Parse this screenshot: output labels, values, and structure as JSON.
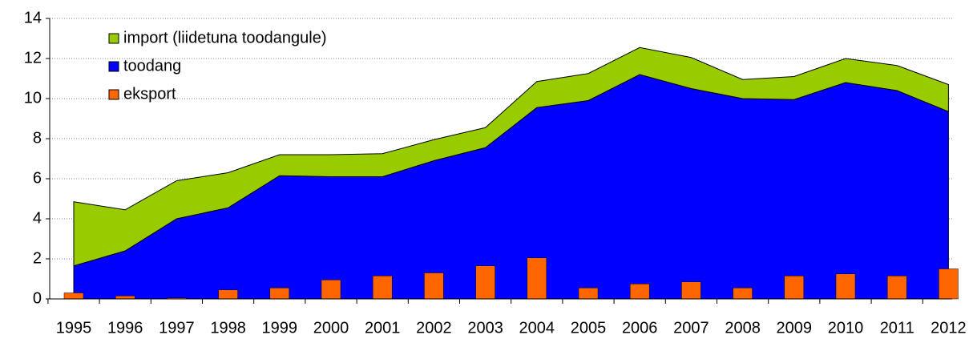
{
  "chart_data": {
    "type": "area",
    "categories": [
      "1995",
      "1996",
      "1997",
      "1998",
      "1999",
      "2000",
      "2001",
      "2002",
      "2003",
      "2004",
      "2005",
      "2006",
      "2007",
      "2008",
      "2009",
      "2010",
      "2011",
      "2012"
    ],
    "series": [
      {
        "name": "import (liidetuna toodangule)",
        "color": "#99cc00",
        "type": "area",
        "values": [
          3.2,
          2.05,
          1.9,
          1.75,
          1.05,
          1.1,
          1.15,
          1.05,
          1.0,
          1.3,
          1.35,
          1.35,
          1.55,
          0.95,
          1.15,
          1.2,
          1.25,
          1.35
        ]
      },
      {
        "name": "toodang",
        "color": "#0000ff",
        "type": "area",
        "values": [
          1.65,
          2.4,
          4.0,
          4.55,
          6.15,
          6.1,
          6.1,
          6.9,
          7.55,
          9.55,
          9.9,
          11.2,
          10.5,
          10.0,
          9.95,
          10.8,
          10.4,
          9.35
        ]
      },
      {
        "name": "eksport",
        "color": "#ff6600",
        "type": "bar",
        "values": [
          0.3,
          0.15,
          0.05,
          0.45,
          0.55,
          0.95,
          1.15,
          1.3,
          1.65,
          2.05,
          0.55,
          0.75,
          0.85,
          0.55,
          1.15,
          1.25,
          1.15,
          1.5
        ]
      }
    ],
    "ylim": [
      0,
      14
    ],
    "yticks": [
      0,
      2,
      4,
      6,
      8,
      10,
      12,
      14
    ],
    "grid": true,
    "legend": "top-left"
  }
}
